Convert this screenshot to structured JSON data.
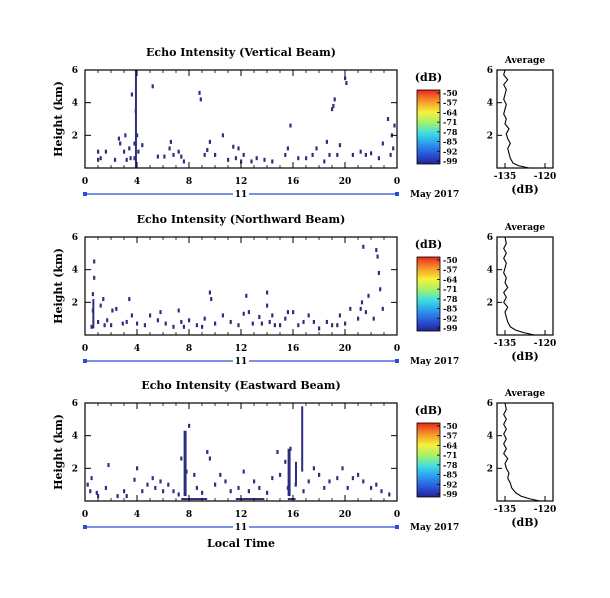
{
  "chart_data": [
    {
      "type": "heatmap",
      "title": "Echo Intensity (Vertical Beam)",
      "ylabel": "Height (km)",
      "xlabel": "",
      "x_ticks": [
        "0",
        "4",
        "8",
        "12",
        "16",
        "20",
        "0"
      ],
      "y_ticks": [
        "2",
        "4",
        "6"
      ],
      "xlim": [
        0,
        24
      ],
      "ylim": [
        0,
        6
      ],
      "date_axis": {
        "day": "11",
        "month_year": "May 2017"
      },
      "colorbar": {
        "unit": "(dB)",
        "ticks": [
          "-50",
          "-57",
          "-64",
          "-71",
          "-78",
          "-85",
          "-92",
          "-99"
        ],
        "range": [
          -99,
          -50
        ]
      },
      "echoes": [
        [
          1,
          0.5
        ],
        [
          1,
          1
        ],
        [
          1.2,
          0.6
        ],
        [
          1.6,
          1
        ],
        [
          2.3,
          0.5
        ],
        [
          2.6,
          1.8
        ],
        [
          2.7,
          1.5
        ],
        [
          3,
          1
        ],
        [
          3.1,
          2
        ],
        [
          3.2,
          0.5
        ],
        [
          3.4,
          1.2
        ],
        [
          3.5,
          0.6
        ],
        [
          3.6,
          4.5
        ],
        [
          3.8,
          0.6
        ],
        [
          3.8,
          1.5
        ],
        [
          3.9,
          3.5
        ],
        [
          4,
          2
        ],
        [
          4.1,
          1
        ],
        [
          4.4,
          1.4
        ],
        [
          5.2,
          5
        ],
        [
          5.6,
          0.7
        ],
        [
          6.1,
          0.7
        ],
        [
          6.5,
          1.2
        ],
        [
          6.6,
          1.6
        ],
        [
          6.8,
          0.8
        ],
        [
          7.2,
          1
        ],
        [
          7.4,
          0.7
        ],
        [
          7.6,
          0.4
        ],
        [
          8.8,
          4.6
        ],
        [
          8.9,
          4.2
        ],
        [
          9.2,
          0.8
        ],
        [
          9.4,
          1.1
        ],
        [
          9.6,
          1.6
        ],
        [
          10,
          0.8
        ],
        [
          10.6,
          2
        ],
        [
          11,
          0.5
        ],
        [
          11.4,
          1.3
        ],
        [
          11.6,
          0.6
        ],
        [
          11.8,
          1.2
        ],
        [
          12,
          0.4
        ],
        [
          12.2,
          0.8
        ],
        [
          12.8,
          0.4
        ],
        [
          13.2,
          0.6
        ],
        [
          13.8,
          0.5
        ],
        [
          14.4,
          0.4
        ],
        [
          15.4,
          0.8
        ],
        [
          15.6,
          1.2
        ],
        [
          15.8,
          2.6
        ],
        [
          16.4,
          0.6
        ],
        [
          17,
          0.6
        ],
        [
          17.5,
          0.8
        ],
        [
          17.8,
          1.2
        ],
        [
          18.4,
          0.4
        ],
        [
          18.6,
          1.6
        ],
        [
          18.8,
          0.8
        ],
        [
          19,
          3.6
        ],
        [
          19.1,
          3.8
        ],
        [
          19.2,
          4.2
        ],
        [
          19.4,
          0.8
        ],
        [
          19.6,
          1.4
        ],
        [
          20,
          5.5
        ],
        [
          20.1,
          5.2
        ],
        [
          20.6,
          0.8
        ],
        [
          21.2,
          1
        ],
        [
          21.6,
          0.8
        ],
        [
          22,
          0.9
        ],
        [
          22.6,
          0.6
        ],
        [
          22.9,
          1.5
        ],
        [
          23.3,
          3
        ],
        [
          23.5,
          0.8
        ],
        [
          23.6,
          2
        ],
        [
          23.7,
          1.2
        ],
        [
          23.8,
          2.6
        ]
      ],
      "columns": [
        [
          3.9,
          0,
          6,
          0.5
        ]
      ],
      "layers": [],
      "mean_profile": {
        "title": "Average",
        "xlabel": "(dB)",
        "x_ticks": [
          "-135",
          "-120"
        ],
        "y_ticks": [
          "2",
          "4",
          "6"
        ],
        "xlim": [
          -138,
          -117
        ],
        "ylim": [
          0,
          6
        ],
        "points": [
          [
            -126,
            0
          ],
          [
            -130,
            0.15
          ],
          [
            -132,
            0.3
          ],
          [
            -133,
            0.6
          ],
          [
            -133.5,
            0.9
          ],
          [
            -134,
            1.2
          ],
          [
            -133,
            1.5
          ],
          [
            -134,
            1.8
          ],
          [
            -134.5,
            2.1
          ],
          [
            -133.5,
            2.4
          ],
          [
            -135,
            2.7
          ],
          [
            -134.5,
            3
          ],
          [
            -135.5,
            3.3
          ],
          [
            -135,
            3.6
          ],
          [
            -134.5,
            3.9
          ],
          [
            -135.5,
            4.2
          ],
          [
            -135,
            4.5
          ],
          [
            -134.5,
            4.8
          ],
          [
            -135.5,
            5.1
          ],
          [
            -134,
            5.4
          ],
          [
            -135.5,
            5.7
          ],
          [
            -135,
            6
          ]
        ]
      }
    },
    {
      "type": "heatmap",
      "title": "Echo Intensity (Northward Beam)",
      "ylabel": "Height (km)",
      "xlabel": "",
      "x_ticks": [
        "0",
        "4",
        "8",
        "12",
        "16",
        "20",
        "0"
      ],
      "y_ticks": [
        "2",
        "4",
        "6"
      ],
      "xlim": [
        0,
        24
      ],
      "ylim": [
        0,
        6
      ],
      "date_axis": {
        "day": "11",
        "month_year": "May 2017"
      },
      "colorbar": {
        "unit": "(dB)",
        "ticks": [
          "-50",
          "-57",
          "-64",
          "-71",
          "-78",
          "-85",
          "-92",
          "-99"
        ],
        "range": [
          -99,
          -50
        ]
      },
      "echoes": [
        [
          0.5,
          0.5
        ],
        [
          0.6,
          1.5
        ],
        [
          0.6,
          2.5
        ],
        [
          0.7,
          3.5
        ],
        [
          0.7,
          4.5
        ],
        [
          1,
          0.8
        ],
        [
          1.2,
          1.8
        ],
        [
          1.4,
          2.2
        ],
        [
          1.5,
          0.6
        ],
        [
          1.7,
          0.9
        ],
        [
          2,
          0.6
        ],
        [
          2.1,
          1.5
        ],
        [
          2.4,
          1.6
        ],
        [
          2.9,
          0.7
        ],
        [
          3.2,
          0.8
        ],
        [
          3.4,
          2.2
        ],
        [
          3.6,
          1.2
        ],
        [
          4,
          0.7
        ],
        [
          4.6,
          0.6
        ],
        [
          5,
          1.2
        ],
        [
          5.6,
          0.9
        ],
        [
          5.8,
          1.4
        ],
        [
          6.2,
          0.7
        ],
        [
          6.8,
          0.5
        ],
        [
          7.2,
          1.5
        ],
        [
          7.4,
          0.8
        ],
        [
          7.6,
          0.5
        ],
        [
          8,
          0.9
        ],
        [
          8.6,
          0.6
        ],
        [
          9,
          0.5
        ],
        [
          9.2,
          1
        ],
        [
          9.6,
          2.6
        ],
        [
          9.7,
          2.2
        ],
        [
          10,
          0.7
        ],
        [
          10.6,
          1.2
        ],
        [
          11.2,
          0.8
        ],
        [
          11.8,
          0.6
        ],
        [
          12.2,
          1.3
        ],
        [
          12.4,
          2.4
        ],
        [
          12.6,
          1.4
        ],
        [
          12.9,
          0.7
        ],
        [
          13.4,
          1.1
        ],
        [
          13.6,
          0.7
        ],
        [
          14,
          1.8
        ],
        [
          14,
          2.6
        ],
        [
          14.2,
          0.8
        ],
        [
          14.4,
          1.2
        ],
        [
          14.6,
          0.6
        ],
        [
          15,
          0.6
        ],
        [
          15.4,
          1
        ],
        [
          15.6,
          1.4
        ],
        [
          16,
          1.4
        ],
        [
          16.4,
          0.6
        ],
        [
          16.8,
          0.8
        ],
        [
          17.2,
          1.2
        ],
        [
          17.6,
          0.8
        ],
        [
          18,
          0.4
        ],
        [
          18.6,
          0.8
        ],
        [
          19,
          0.6
        ],
        [
          19.4,
          0.6
        ],
        [
          19.6,
          1.2
        ],
        [
          20,
          0.7
        ],
        [
          20.4,
          1.6
        ],
        [
          21,
          1
        ],
        [
          21.2,
          1.6
        ],
        [
          21.3,
          2
        ],
        [
          21.4,
          5.4
        ],
        [
          21.6,
          1.4
        ],
        [
          21.8,
          2.4
        ],
        [
          22.2,
          1
        ],
        [
          22.4,
          5.2
        ],
        [
          22.5,
          4.8
        ],
        [
          22.6,
          3.8
        ],
        [
          22.7,
          2.8
        ],
        [
          22.9,
          1.6
        ]
      ],
      "columns": [
        [
          0.6,
          0.4,
          2.2,
          0.3
        ]
      ],
      "layers": [],
      "mean_profile": {
        "title": "Average",
        "xlabel": "(dB)",
        "x_ticks": [
          "-135",
          "-120"
        ],
        "y_ticks": [
          "2",
          "4",
          "6"
        ],
        "xlim": [
          -138,
          -117
        ],
        "ylim": [
          0,
          6
        ],
        "points": [
          [
            -124,
            0
          ],
          [
            -128,
            0.15
          ],
          [
            -131,
            0.3
          ],
          [
            -133,
            0.5
          ],
          [
            -134,
            0.8
          ],
          [
            -134.5,
            1.1
          ],
          [
            -135,
            1.4
          ],
          [
            -134,
            1.7
          ],
          [
            -135.5,
            2
          ],
          [
            -134.5,
            2.3
          ],
          [
            -135.5,
            2.6
          ],
          [
            -134,
            2.9
          ],
          [
            -135,
            3.2
          ],
          [
            -134.5,
            3.5
          ],
          [
            -135.5,
            3.8
          ],
          [
            -135,
            4.1
          ],
          [
            -134.5,
            4.4
          ],
          [
            -135.5,
            4.7
          ],
          [
            -134.5,
            5
          ],
          [
            -135.5,
            5.3
          ],
          [
            -134.5,
            5.6
          ],
          [
            -135,
            6
          ]
        ]
      }
    },
    {
      "type": "heatmap",
      "title": "Echo Intensity (Eastward Beam)",
      "ylabel": "Height (km)",
      "xlabel": "Local Time",
      "x_ticks": [
        "0",
        "4",
        "8",
        "12",
        "16",
        "20",
        "0"
      ],
      "y_ticks": [
        "2",
        "4",
        "6"
      ],
      "xlim": [
        0,
        24
      ],
      "ylim": [
        0,
        6
      ],
      "date_axis": {
        "day": "11",
        "month_year": "May 2017"
      },
      "colorbar": {
        "unit": "(dB)",
        "ticks": [
          "-50",
          "-57",
          "-64",
          "-71",
          "-78",
          "-85",
          "-92",
          "-99"
        ],
        "range": [
          -99,
          -50
        ]
      },
      "echoes": [
        [
          0.2,
          1
        ],
        [
          0.4,
          0.6
        ],
        [
          0.5,
          1.4
        ],
        [
          0.9,
          0.5
        ],
        [
          1,
          0.3
        ],
        [
          1.6,
          0.8
        ],
        [
          1.8,
          2.2
        ],
        [
          2.5,
          0.3
        ],
        [
          3,
          0.6
        ],
        [
          3.2,
          0.3
        ],
        [
          3.8,
          1.3
        ],
        [
          4,
          2
        ],
        [
          4.4,
          0.6
        ],
        [
          4.8,
          1
        ],
        [
          5.2,
          1.4
        ],
        [
          5.4,
          0.8
        ],
        [
          5.8,
          1.2
        ],
        [
          6,
          0.6
        ],
        [
          6.4,
          1
        ],
        [
          6.8,
          0.6
        ],
        [
          7.2,
          0.4
        ],
        [
          7.4,
          2.6
        ],
        [
          7.8,
          1.8
        ],
        [
          8,
          4.6
        ],
        [
          8.4,
          1.6
        ],
        [
          8.6,
          0.8
        ],
        [
          9,
          0.5
        ],
        [
          9.4,
          3
        ],
        [
          9.6,
          2.6
        ],
        [
          10,
          1
        ],
        [
          10.4,
          1.6
        ],
        [
          10.8,
          1.2
        ],
        [
          11.2,
          0.6
        ],
        [
          11.8,
          0.8
        ],
        [
          12.2,
          1.8
        ],
        [
          12.6,
          0.6
        ],
        [
          13,
          1.2
        ],
        [
          13.4,
          0.8
        ],
        [
          14,
          0.5
        ],
        [
          14.4,
          1.4
        ],
        [
          14.8,
          3
        ],
        [
          15,
          1.6
        ],
        [
          15.4,
          2.4
        ],
        [
          15.6,
          0.8
        ],
        [
          15.8,
          3.2
        ],
        [
          16.2,
          1
        ],
        [
          16.8,
          0.6
        ],
        [
          17.2,
          1.2
        ],
        [
          17.6,
          2
        ],
        [
          18,
          1.6
        ],
        [
          18.4,
          0.8
        ],
        [
          18.8,
          1.2
        ],
        [
          19.4,
          1.4
        ],
        [
          19.8,
          2
        ],
        [
          20.2,
          0.8
        ],
        [
          20.6,
          1.4
        ],
        [
          21,
          1.6
        ],
        [
          21.4,
          1.2
        ],
        [
          22,
          0.8
        ],
        [
          22.4,
          1
        ],
        [
          22.8,
          0.6
        ],
        [
          23.4,
          0.4
        ]
      ],
      "columns": [
        [
          7.7,
          0.3,
          4.3,
          1
        ],
        [
          15.7,
          0.3,
          3.2,
          1
        ],
        [
          16.7,
          1.8,
          5.8,
          0.6
        ],
        [
          16.2,
          1,
          2.4,
          0.4
        ]
      ],
      "layers": [
        [
          7.4,
          0.12,
          9.4
        ],
        [
          11.6,
          0.12,
          13.8
        ],
        [
          15.6,
          0.12,
          16.2
        ]
      ],
      "mean_profile": {
        "title": "Average",
        "xlabel": "(dB)",
        "x_ticks": [
          "-135",
          "-120"
        ],
        "y_ticks": [
          "2",
          "4",
          "6"
        ],
        "xlim": [
          -138,
          -117
        ],
        "ylim": [
          0,
          6
        ],
        "points": [
          [
            -122,
            0
          ],
          [
            -126,
            0.15
          ],
          [
            -129,
            0.3
          ],
          [
            -131,
            0.5
          ],
          [
            -132.5,
            0.8
          ],
          [
            -133,
            1.1
          ],
          [
            -134,
            1.4
          ],
          [
            -133.5,
            1.7
          ],
          [
            -134.5,
            2
          ],
          [
            -135,
            2.3
          ],
          [
            -134,
            2.6
          ],
          [
            -135.5,
            2.9
          ],
          [
            -134.5,
            3.2
          ],
          [
            -135.5,
            3.5
          ],
          [
            -134.5,
            3.8
          ],
          [
            -135.5,
            4.1
          ],
          [
            -134.5,
            4.4
          ],
          [
            -135.5,
            4.7
          ],
          [
            -134.5,
            5
          ],
          [
            -135.5,
            5.3
          ],
          [
            -134.5,
            5.6
          ],
          [
            -135,
            6
          ]
        ]
      }
    }
  ]
}
